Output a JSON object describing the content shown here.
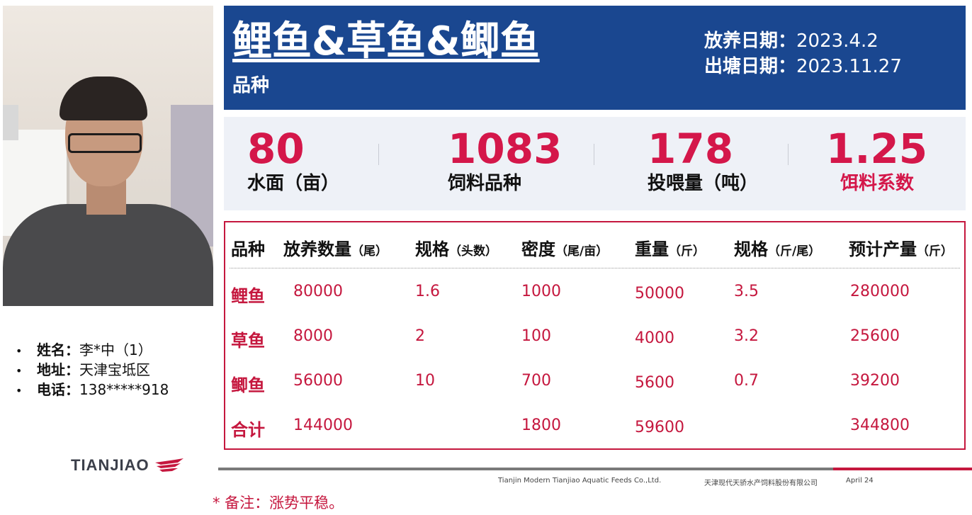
{
  "banner": {
    "title": "鲤鱼&草鱼&鲫鱼",
    "subtitle": "品种",
    "stock_date_label": "放养日期：",
    "stock_date": "2023.4.2",
    "harvest_date_label": "出塘日期：",
    "harvest_date": "2023.11.27"
  },
  "stats": [
    {
      "value": "80",
      "label": "水面（亩）"
    },
    {
      "value": "1083",
      "label": "饲料品种"
    },
    {
      "value": "178",
      "label": "投喂量（吨）"
    },
    {
      "value": "1.25",
      "label": "饵料系数"
    }
  ],
  "table": {
    "headers": [
      {
        "main": "品种",
        "unit": ""
      },
      {
        "main": "放养数量",
        "unit": "（尾）"
      },
      {
        "main": "规格",
        "unit": "（头数）"
      },
      {
        "main": "密度",
        "unit": "（尾/亩）"
      },
      {
        "main": "重量",
        "unit": "（斤）"
      },
      {
        "main": "规格",
        "unit": "（斤/尾）"
      },
      {
        "main": "预计产量",
        "unit": "（斤）"
      }
    ],
    "rows": [
      {
        "name": "鲤鱼",
        "qty": "80000",
        "spec": "1.6",
        "density": "1000",
        "weight": "50000",
        "spec2": "3.5",
        "yield": "280000"
      },
      {
        "name": "草鱼",
        "qty": "8000",
        "spec": "2",
        "density": "100",
        "weight": "4000",
        "spec2": "3.2",
        "yield": "25600"
      },
      {
        "name": "鲫鱼",
        "qty": "56000",
        "spec": "10",
        "density": "700",
        "weight": "5600",
        "spec2": "0.7",
        "yield": "39200"
      },
      {
        "name": "合计",
        "qty": "144000",
        "spec": "",
        "density": "1800",
        "weight": "59600",
        "spec2": "",
        "yield": "344800"
      }
    ]
  },
  "info": [
    {
      "key": "姓名：",
      "value": "李*中（1）"
    },
    {
      "key": "地址：",
      "value": "天津宝坻区"
    },
    {
      "key": "电话：",
      "value": "138*****918"
    }
  ],
  "bullet": "•",
  "logo_text": "TIANJIAO",
  "footer": {
    "company_en": "Tianjin Modern Tianjiao Aquatic Feeds Co.,Ltd.",
    "company_cn": "天津现代天骄水产饲料股份有限公司",
    "date": "April 24"
  },
  "note": "* 备注：涨势平稳。",
  "colors": {
    "banner": "#1a4790",
    "accent": "#d4174a",
    "border": "#c5173e"
  }
}
